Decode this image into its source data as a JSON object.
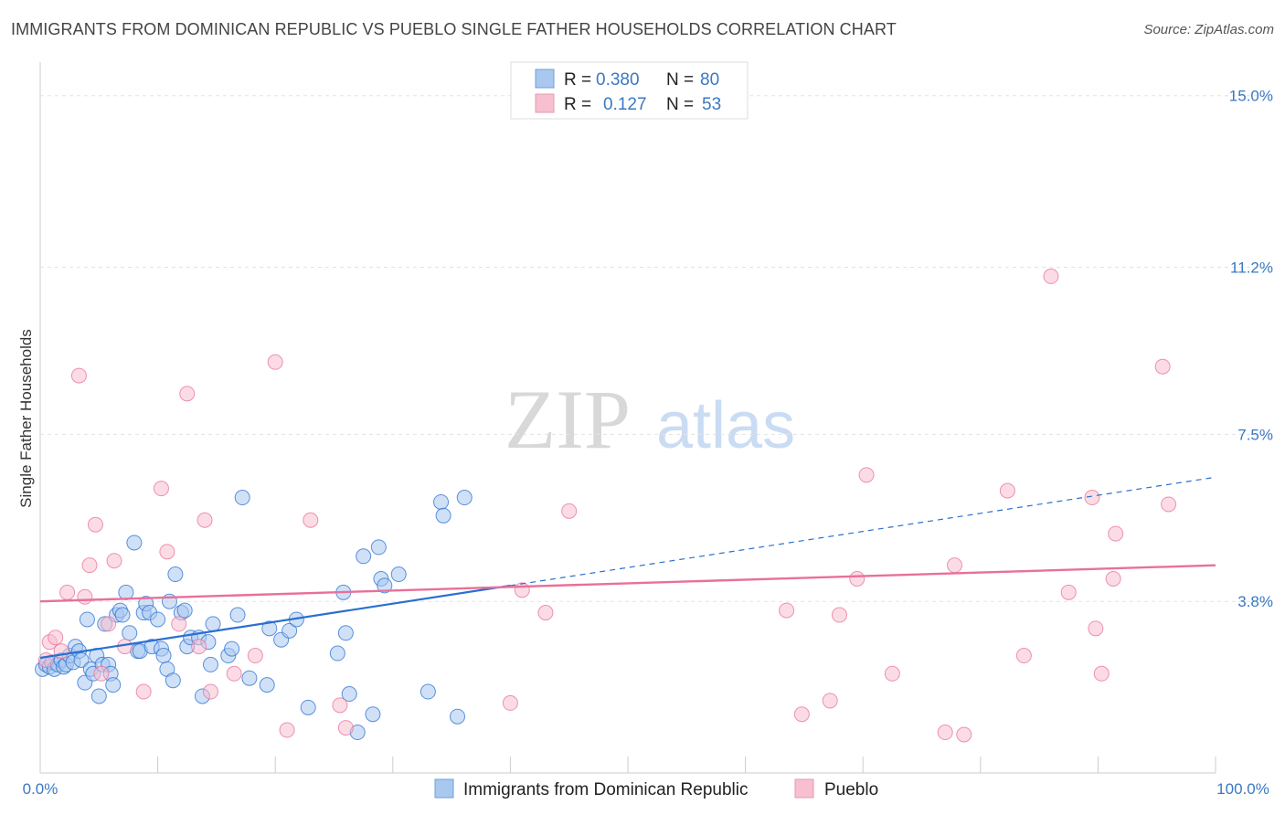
{
  "header": {
    "title": "IMMIGRANTS FROM DOMINICAN REPUBLIC VS PUEBLO SINGLE FATHER HOUSEHOLDS CORRELATION CHART",
    "source": "Source: ZipAtlas.com"
  },
  "watermark": {
    "zip": "ZIP",
    "atlas": "atlas"
  },
  "colors": {
    "blue": "#2a6fd1",
    "blue_fill": "#a9c8f0",
    "pink": "#e8709a",
    "pink_fill": "#f7bfd0",
    "tick": "#3a78c2"
  },
  "legend": {
    "rows": [
      {
        "r_label": "R = ",
        "r_value": "0.380",
        "n_label": "N = ",
        "n_value": "80"
      },
      {
        "r_label": "R = ",
        "r_value": "0.127",
        "n_label": "N = ",
        "n_value": "53"
      }
    ]
  },
  "bottom_legend": {
    "series1": "Immigrants from Dominican Republic",
    "series2": "Pueblo"
  },
  "chart_data": {
    "type": "scatter",
    "title": "IMMIGRANTS FROM DOMINICAN REPUBLIC VS PUEBLO SINGLE FATHER HOUSEHOLDS CORRELATION CHART",
    "xlabel": "",
    "ylabel": "Single Father Households",
    "xlim": [
      0,
      100
    ],
    "ylim": [
      0,
      15.5
    ],
    "x_tick_labels": [
      "0.0%",
      "100.0%"
    ],
    "y_ticks": [
      3.8,
      7.5,
      11.2,
      15.0
    ],
    "y_tick_labels": [
      "3.8%",
      "7.5%",
      "11.2%",
      "15.0%"
    ],
    "series": [
      {
        "name": "Immigrants from Dominican Republic",
        "color": "#2a6fd1",
        "fill": "#a9c8f0",
        "r": 0.38,
        "n": 80,
        "trend": {
          "x0": 0,
          "y0": 2.55,
          "x1": 100,
          "y1": 6.55,
          "solid_until": 40
        },
        "points": [
          [
            0.2,
            2.3
          ],
          [
            0.5,
            2.4
          ],
          [
            0.8,
            2.35
          ],
          [
            1.0,
            2.45
          ],
          [
            1.2,
            2.3
          ],
          [
            1.5,
            2.4
          ],
          [
            1.8,
            2.5
          ],
          [
            2.0,
            2.35
          ],
          [
            2.2,
            2.4
          ],
          [
            2.5,
            2.6
          ],
          [
            2.8,
            2.45
          ],
          [
            3.0,
            2.8
          ],
          [
            3.3,
            2.7
          ],
          [
            3.5,
            2.5
          ],
          [
            3.8,
            2.0
          ],
          [
            4.0,
            3.4
          ],
          [
            4.3,
            2.3
          ],
          [
            4.5,
            2.2
          ],
          [
            4.8,
            2.6
          ],
          [
            5.0,
            1.7
          ],
          [
            5.3,
            2.4
          ],
          [
            5.5,
            3.3
          ],
          [
            5.8,
            2.4
          ],
          [
            6.0,
            2.2
          ],
          [
            6.2,
            1.95
          ],
          [
            6.5,
            3.5
          ],
          [
            6.8,
            3.6
          ],
          [
            7.0,
            3.5
          ],
          [
            7.3,
            4.0
          ],
          [
            7.6,
            3.1
          ],
          [
            8.0,
            5.1
          ],
          [
            8.3,
            2.7
          ],
          [
            8.5,
            2.7
          ],
          [
            8.8,
            3.55
          ],
          [
            9.0,
            3.75
          ],
          [
            9.3,
            3.55
          ],
          [
            9.5,
            2.8
          ],
          [
            10.0,
            3.4
          ],
          [
            10.3,
            2.75
          ],
          [
            10.5,
            2.6
          ],
          [
            10.8,
            2.3
          ],
          [
            11.0,
            3.8
          ],
          [
            11.3,
            2.05
          ],
          [
            11.5,
            4.4
          ],
          [
            12.0,
            3.55
          ],
          [
            12.3,
            3.6
          ],
          [
            12.5,
            2.8
          ],
          [
            12.8,
            3.0
          ],
          [
            13.5,
            3.0
          ],
          [
            13.8,
            1.7
          ],
          [
            14.3,
            2.9
          ],
          [
            14.7,
            3.3
          ],
          [
            14.5,
            2.4
          ],
          [
            16.0,
            2.6
          ],
          [
            16.3,
            2.75
          ],
          [
            16.8,
            3.5
          ],
          [
            17.2,
            6.1
          ],
          [
            17.8,
            2.1
          ],
          [
            19.3,
            1.95
          ],
          [
            19.5,
            3.2
          ],
          [
            20.5,
            2.95
          ],
          [
            21.2,
            3.15
          ],
          [
            21.8,
            3.4
          ],
          [
            22.8,
            1.45
          ],
          [
            25.3,
            2.65
          ],
          [
            25.8,
            4.0
          ],
          [
            26.0,
            3.1
          ],
          [
            26.3,
            1.75
          ],
          [
            27.5,
            4.8
          ],
          [
            28.3,
            1.3
          ],
          [
            28.8,
            5.0
          ],
          [
            29.0,
            4.3
          ],
          [
            29.3,
            4.15
          ],
          [
            30.5,
            4.4
          ],
          [
            33.0,
            1.8
          ],
          [
            34.1,
            6.0
          ],
          [
            34.3,
            5.7
          ],
          [
            35.5,
            1.25
          ],
          [
            36.1,
            6.1
          ],
          [
            27.0,
            0.9
          ]
        ]
      },
      {
        "name": "Pueblo",
        "color": "#e8709a",
        "fill": "#f7bfd0",
        "r": 0.127,
        "n": 53,
        "trend": {
          "x0": 0,
          "y0": 3.8,
          "x1": 100,
          "y1": 4.6
        },
        "points": [
          [
            0.5,
            2.5
          ],
          [
            0.8,
            2.9
          ],
          [
            1.3,
            3.0
          ],
          [
            1.8,
            2.7
          ],
          [
            2.3,
            4.0
          ],
          [
            3.3,
            8.8
          ],
          [
            3.8,
            3.9
          ],
          [
            4.2,
            4.6
          ],
          [
            4.7,
            5.5
          ],
          [
            5.2,
            2.2
          ],
          [
            5.8,
            3.3
          ],
          [
            6.3,
            4.7
          ],
          [
            7.2,
            2.8
          ],
          [
            8.8,
            1.8
          ],
          [
            10.3,
            6.3
          ],
          [
            10.8,
            4.9
          ],
          [
            11.8,
            3.3
          ],
          [
            12.5,
            8.4
          ],
          [
            13.5,
            2.8
          ],
          [
            14.0,
            5.6
          ],
          [
            14.5,
            1.8
          ],
          [
            16.5,
            2.2
          ],
          [
            18.3,
            2.6
          ],
          [
            20.0,
            9.1
          ],
          [
            21.0,
            0.95
          ],
          [
            23.0,
            5.6
          ],
          [
            25.5,
            1.5
          ],
          [
            26.0,
            1.0
          ],
          [
            40.0,
            1.55
          ],
          [
            41.0,
            4.05
          ],
          [
            43.0,
            3.55
          ],
          [
            45.0,
            5.8
          ],
          [
            63.5,
            3.6
          ],
          [
            64.8,
            1.3
          ],
          [
            67.2,
            1.6
          ],
          [
            68.0,
            3.5
          ],
          [
            69.5,
            4.3
          ],
          [
            70.3,
            6.6
          ],
          [
            72.5,
            2.2
          ],
          [
            77.0,
            0.9
          ],
          [
            77.8,
            4.6
          ],
          [
            78.6,
            0.85
          ],
          [
            82.3,
            6.25
          ],
          [
            83.7,
            2.6
          ],
          [
            86.0,
            11.0
          ],
          [
            87.5,
            4.0
          ],
          [
            89.5,
            6.1
          ],
          [
            89.8,
            3.2
          ],
          [
            90.3,
            2.2
          ],
          [
            91.3,
            4.3
          ],
          [
            91.5,
            5.3
          ],
          [
            95.5,
            9.0
          ],
          [
            96.0,
            5.95
          ]
        ]
      }
    ]
  }
}
